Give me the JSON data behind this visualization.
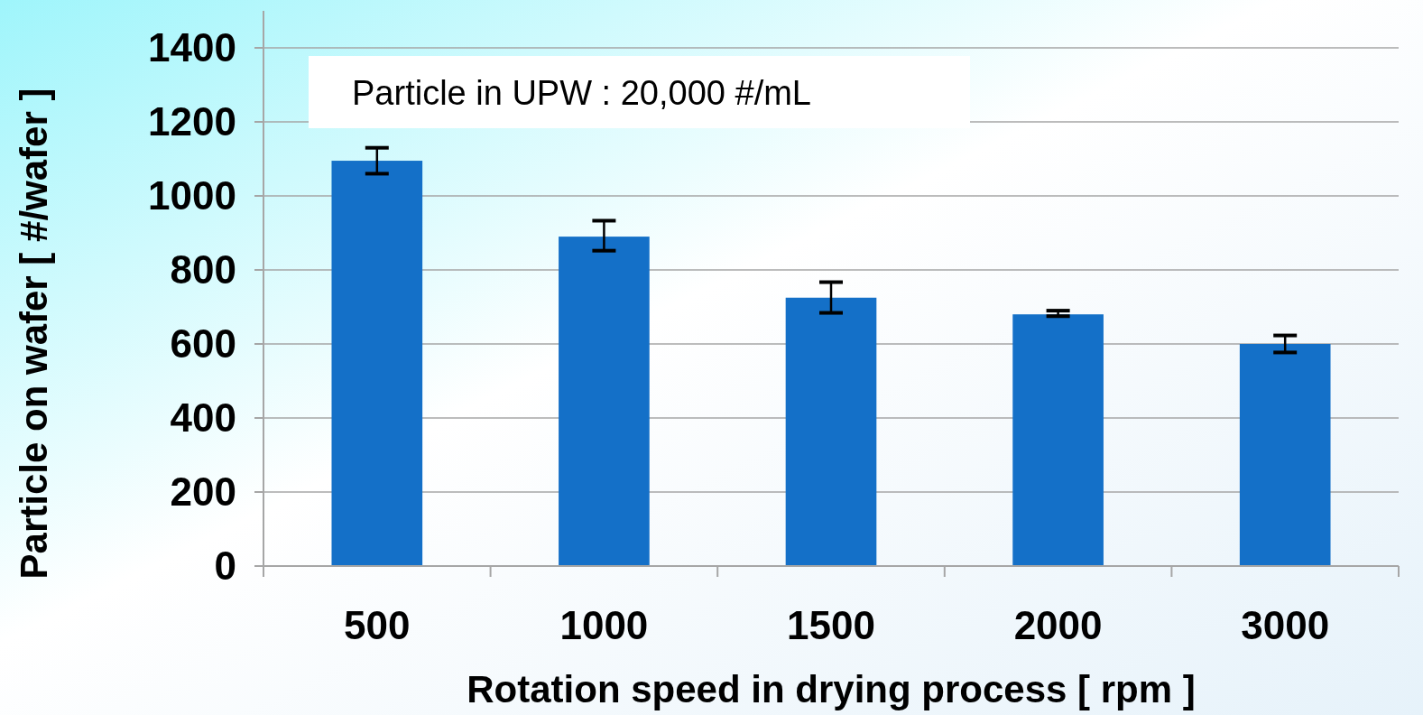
{
  "chart_data": {
    "type": "bar",
    "xlabel": "Rotation speed in drying process [ rpm ]",
    "ylabel": "Particle on wafer [ #/wafer ]",
    "categories": [
      "500",
      "1000",
      "1500",
      "2000",
      "3000"
    ],
    "values": [
      1095,
      890,
      725,
      680,
      600
    ],
    "errors": [
      [
        1060,
        1130
      ],
      [
        852,
        933
      ],
      [
        684,
        767
      ],
      [
        675,
        690
      ],
      [
        577,
        623
      ]
    ],
    "color": "#1470c8",
    "ylim": [
      0,
      1500
    ],
    "yticks": [
      0,
      200,
      400,
      600,
      800,
      1000,
      1200,
      1400
    ],
    "grid": "y",
    "annotations": [
      "Particle in UPW : 20,000 #/mL"
    ]
  }
}
